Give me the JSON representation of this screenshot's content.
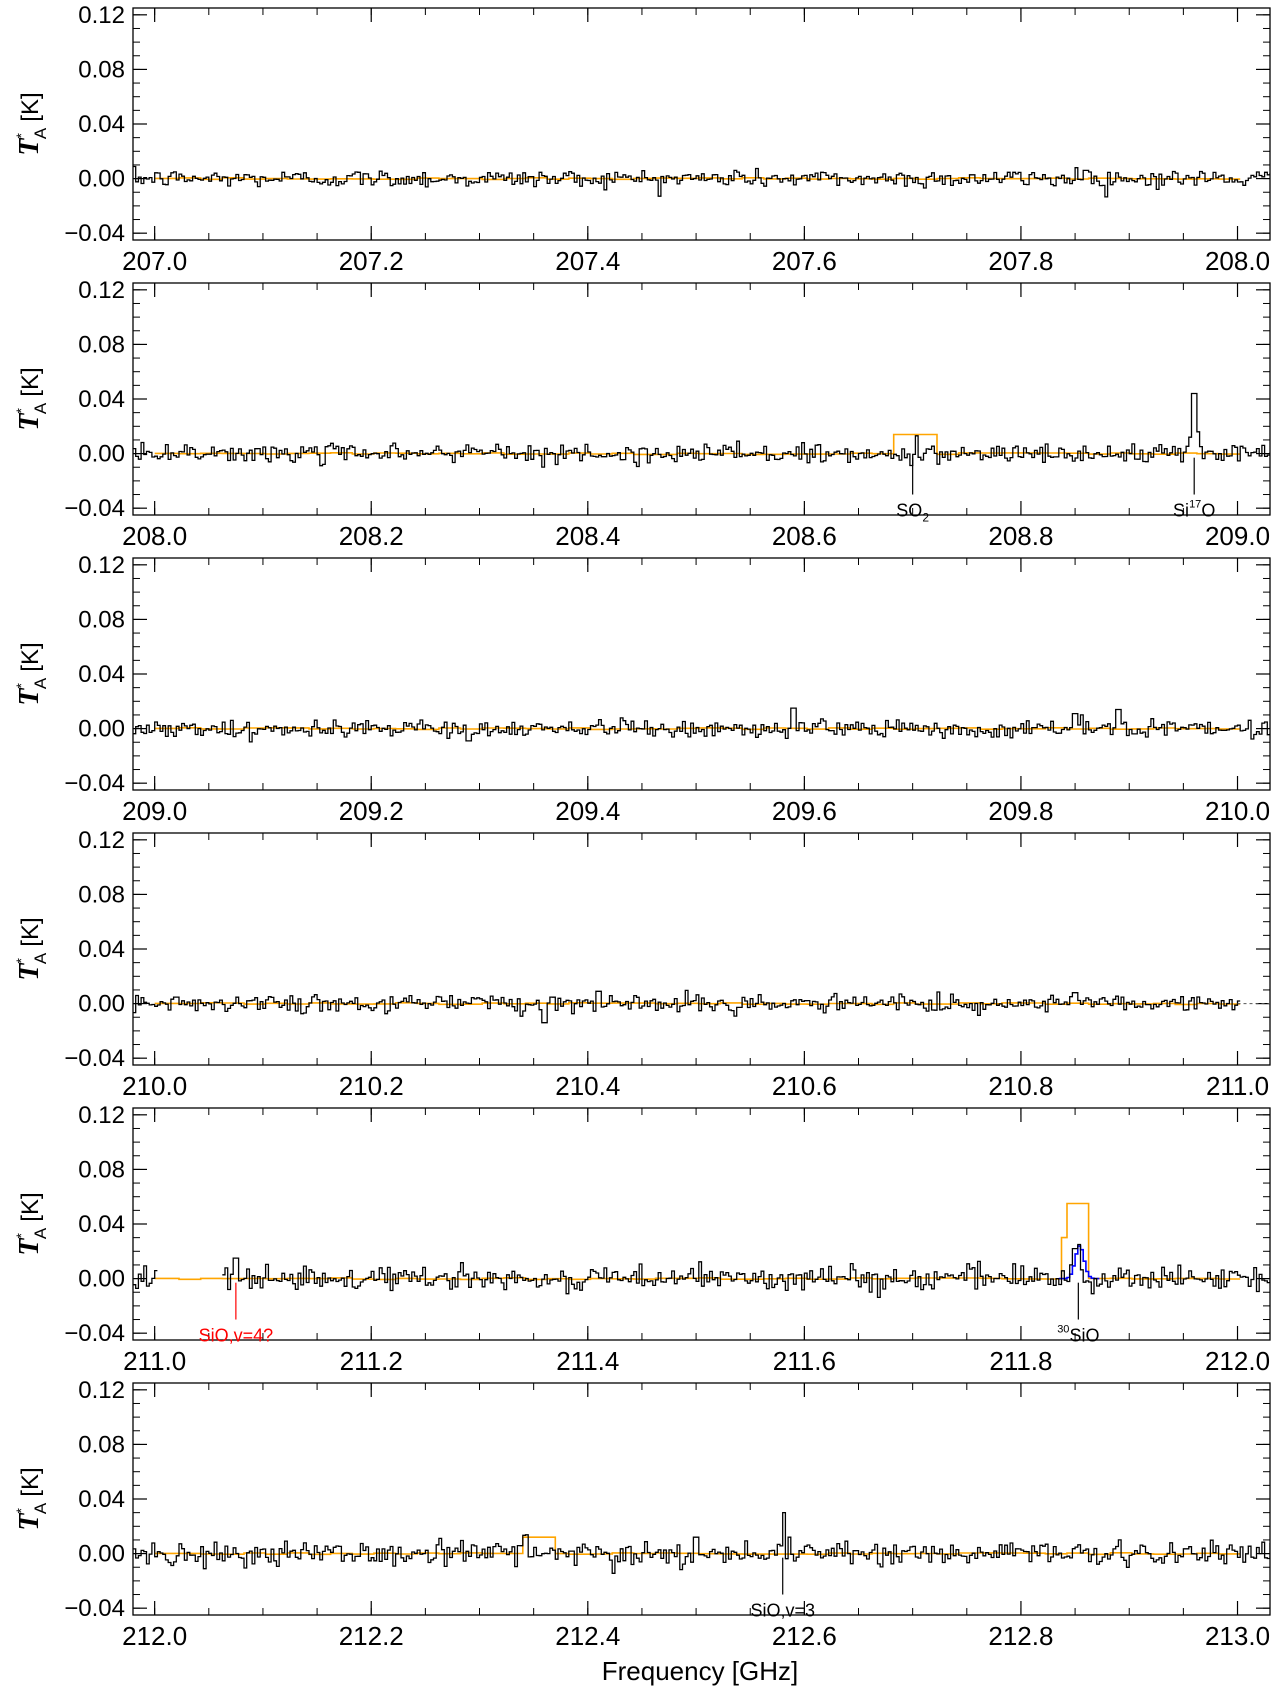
{
  "figure": {
    "xlabel": "Frequency [GHz]",
    "ylabel_main": "T",
    "ylabel_sup": "*",
    "ylabel_sub": "A",
    "ylabel_unit": "[K]"
  },
  "colors": {
    "observed": "#000000",
    "model": "#FFA500",
    "model_alt": "#0000FF",
    "tentative": "#FF0000"
  },
  "chart_data": [
    {
      "type": "line",
      "xlim": [
        206.98,
        208.03
      ],
      "ylim": [
        -0.045,
        0.125
      ],
      "yticks": [
        -0.04,
        0.0,
        0.04,
        0.08,
        0.12
      ],
      "ytick_labels": [
        "−0.04",
        "0.00",
        "0.04",
        "0.08",
        "0.12"
      ],
      "xticks": [
        207.0,
        207.2,
        207.4,
        207.6,
        207.8,
        208.0
      ],
      "xtick_labels": [
        "207.0",
        "207.2",
        "207.4",
        "207.6",
        "207.8",
        "208.0"
      ],
      "noise_rms": 0.0032,
      "spectrum_range": [
        206.98,
        208.03
      ],
      "model_range": [
        207.0,
        208.0
      ],
      "features": [
        {
          "x": 207.537,
          "y": 0.006
        },
        {
          "x": 207.852,
          "y": 0.008
        },
        {
          "x": 207.86,
          "y": 0.006
        }
      ],
      "model_features": [],
      "annotations": []
    },
    {
      "type": "line",
      "xlim": [
        207.98,
        209.03
      ],
      "ylim": [
        -0.045,
        0.125
      ],
      "yticks": [
        -0.04,
        0.0,
        0.04,
        0.08,
        0.12
      ],
      "ytick_labels": [
        "−0.04",
        "0.00",
        "0.04",
        "0.08",
        "0.12"
      ],
      "xticks": [
        208.0,
        208.2,
        208.4,
        208.6,
        208.8,
        209.0
      ],
      "xtick_labels": [
        "208.0",
        "208.2",
        "208.4",
        "208.6",
        "208.8",
        "209.0"
      ],
      "noise_rms": 0.0035,
      "spectrum_range": [
        207.98,
        209.03
      ],
      "model_range": [
        208.0,
        209.0
      ],
      "features": [
        {
          "x": 208.703,
          "y": 0.013
        },
        {
          "x": 208.96,
          "y": 0.044
        },
        {
          "x": 208.964,
          "y": 0.016
        },
        {
          "x": 208.956,
          "y": 0.012
        }
      ],
      "model_features": [
        {
          "x1": 208.69,
          "x2": 208.715,
          "y": 0.014
        }
      ],
      "annotations": [
        {
          "x": 208.7,
          "main": "SO",
          "sub": "2",
          "sup": "",
          "after": "",
          "color": "black"
        },
        {
          "x": 208.96,
          "main": "Si",
          "sub": "",
          "sup": "17",
          "after": "O",
          "color": "black"
        }
      ]
    },
    {
      "type": "line",
      "xlim": [
        208.98,
        210.03
      ],
      "ylim": [
        -0.045,
        0.125
      ],
      "yticks": [
        -0.04,
        0.0,
        0.04,
        0.08,
        0.12
      ],
      "ytick_labels": [
        "−0.04",
        "0.00",
        "0.04",
        "0.08",
        "0.12"
      ],
      "xticks": [
        209.0,
        209.2,
        209.4,
        209.6,
        209.8,
        210.0
      ],
      "xtick_labels": [
        "209.0",
        "209.2",
        "209.4",
        "209.6",
        "209.8",
        "210.0"
      ],
      "noise_rms": 0.0033,
      "spectrum_range": [
        208.98,
        210.03
      ],
      "model_range": [
        209.0,
        210.0
      ],
      "features": [
        {
          "x": 209.59,
          "y": 0.015
        },
        {
          "x": 209.85,
          "y": 0.011
        },
        {
          "x": 209.89,
          "y": 0.014
        },
        {
          "x": 209.29,
          "y": -0.009
        }
      ],
      "model_features": [],
      "annotations": []
    },
    {
      "type": "line",
      "xlim": [
        209.98,
        211.03
      ],
      "ylim": [
        -0.045,
        0.125
      ],
      "yticks": [
        -0.04,
        0.0,
        0.04,
        0.08,
        0.12
      ],
      "ytick_labels": [
        "−0.04",
        "0.00",
        "0.04",
        "0.08",
        "0.12"
      ],
      "xticks": [
        210.0,
        210.2,
        210.4,
        210.6,
        210.8,
        211.0
      ],
      "xtick_labels": [
        "210.0",
        "210.2",
        "210.4",
        "210.6",
        "210.8",
        "211.0"
      ],
      "noise_rms": 0.0033,
      "spectrum_range": [
        209.98,
        211.0
      ],
      "model_range": [
        210.0,
        211.0
      ],
      "features": [
        {
          "x": 210.36,
          "y": -0.014
        },
        {
          "x": 210.41,
          "y": 0.009
        },
        {
          "x": 210.85,
          "y": 0.008
        }
      ],
      "model_features": [],
      "annotations": []
    },
    {
      "type": "line",
      "xlim": [
        210.98,
        212.03
      ],
      "ylim": [
        -0.045,
        0.125
      ],
      "yticks": [
        -0.04,
        0.0,
        0.04,
        0.08,
        0.12
      ],
      "ytick_labels": [
        "−0.04",
        "0.00",
        "0.04",
        "0.08",
        "0.12"
      ],
      "xticks": [
        211.0,
        211.2,
        211.4,
        211.6,
        211.8,
        212.0
      ],
      "xtick_labels": [
        "211.0",
        "211.2",
        "211.4",
        "211.6",
        "211.8",
        "212.0"
      ],
      "noise_rms": 0.0045,
      "spectrum_range": [
        210.98,
        212.03
      ],
      "spectrum_gap": [
        211.0,
        211.06
      ],
      "model_range": [
        211.0,
        212.0
      ],
      "features": [
        {
          "x": 211.85,
          "y": 0.022
        },
        {
          "x": 211.854,
          "y": 0.025
        },
        {
          "x": 211.846,
          "y": 0.01
        },
        {
          "x": 211.075,
          "y": 0.015
        }
      ],
      "model_features": [
        {
          "x1": 211.843,
          "x2": 211.858,
          "y": 0.055
        },
        {
          "x1": 211.838,
          "x2": 211.862,
          "y": 0.03
        }
      ],
      "alt_model": {
        "center": 211.853,
        "width": 0.004,
        "peak": 0.024,
        "x1": 211.835,
        "x2": 211.87
      },
      "annotations": [
        {
          "x": 211.075,
          "main": "SiO,v=4?",
          "sub": "",
          "sup": "",
          "after": "",
          "color": "red"
        },
        {
          "x": 211.853,
          "main": "SiO",
          "sub": "",
          "sup": "30",
          "pre_sup": true,
          "after": "",
          "color": "black"
        }
      ]
    },
    {
      "type": "line",
      "xlim": [
        211.98,
        213.03
      ],
      "ylim": [
        -0.045,
        0.125
      ],
      "yticks": [
        -0.04,
        0.0,
        0.04,
        0.08,
        0.12
      ],
      "ytick_labels": [
        "−0.04",
        "0.00",
        "0.04",
        "0.08",
        "0.12"
      ],
      "xticks": [
        212.0,
        212.2,
        212.4,
        212.6,
        212.8,
        213.0
      ],
      "xtick_labels": [
        "212.0",
        "212.2",
        "212.4",
        "212.6",
        "212.8",
        "213.0"
      ],
      "noise_rms": 0.0045,
      "spectrum_range": [
        211.98,
        213.03
      ],
      "model_range": [
        212.0,
        213.0
      ],
      "features": [
        {
          "x": 212.582,
          "y": 0.03
        },
        {
          "x": 212.586,
          "y": 0.012
        },
        {
          "x": 212.5,
          "y": 0.012
        }
      ],
      "model_features": [
        {
          "x1": 212.34,
          "x2": 212.37,
          "y": 0.012
        }
      ],
      "annotations": [
        {
          "x": 212.58,
          "main": "SiO,v=3",
          "sub": "",
          "sup": "",
          "after": "",
          "color": "black"
        }
      ]
    }
  ]
}
